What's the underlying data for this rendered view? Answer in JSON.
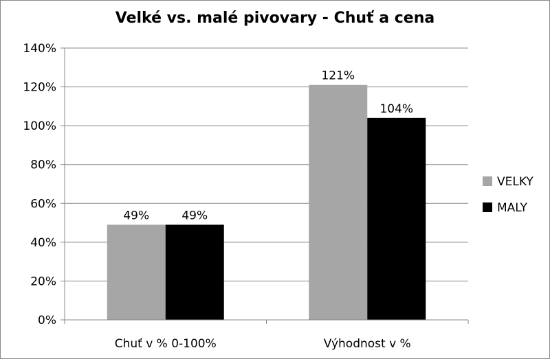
{
  "chart_data": {
    "type": "bar",
    "title": "Velké vs. malé pivovary - Chuť a cena",
    "categories": [
      "Chuť v % 0-100%",
      "Výhodnost v %"
    ],
    "series": [
      {
        "name": "VELKY",
        "values": [
          49,
          121
        ],
        "labels": [
          "49%",
          "121%"
        ],
        "color": "#a6a6a6"
      },
      {
        "name": "MALY",
        "values": [
          49,
          104
        ],
        "labels": [
          "49%",
          "104%"
        ],
        "color": "#000000"
      }
    ],
    "ylim": [
      0,
      140
    ],
    "yticks": [
      "0%",
      "20%",
      "40%",
      "60%",
      "80%",
      "100%",
      "120%",
      "140%"
    ],
    "grid": true,
    "legend": "right"
  }
}
